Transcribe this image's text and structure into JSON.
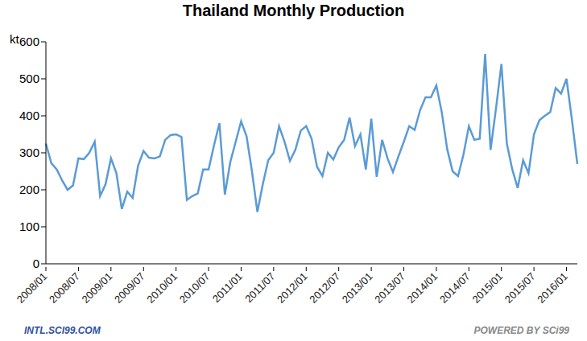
{
  "chart_data": {
    "type": "line",
    "title": "Thailand Monthly Production",
    "y_label": "kt",
    "annotations": [
      "INTL.SCI99.COM",
      "POWERED BY SCi99"
    ],
    "categories": [
      "2008/01",
      null,
      null,
      null,
      null,
      null,
      "2008/07",
      null,
      null,
      null,
      null,
      null,
      "2009/01",
      null,
      null,
      null,
      null,
      null,
      "2009/07",
      null,
      null,
      null,
      null,
      null,
      "2010/01",
      null,
      null,
      null,
      null,
      null,
      "2010/07",
      null,
      null,
      null,
      null,
      null,
      "2011/01",
      null,
      null,
      null,
      null,
      null,
      "2011/07",
      null,
      null,
      null,
      null,
      null,
      "2012/01",
      null,
      null,
      null,
      null,
      null,
      "2012/07",
      null,
      null,
      null,
      null,
      null,
      "2013/01",
      null,
      null,
      null,
      null,
      null,
      "2013/07",
      null,
      null,
      null,
      null,
      null,
      "2014/01",
      null,
      null,
      null,
      null,
      null,
      "2014/07",
      null,
      null,
      null,
      null,
      null,
      "2015/01",
      null,
      null,
      null,
      null,
      null,
      "2015/07",
      null,
      null,
      null,
      null,
      null,
      "2016/01",
      null,
      null
    ],
    "values": [
      325,
      272,
      255,
      225,
      200,
      212,
      285,
      283,
      300,
      330,
      183,
      215,
      285,
      245,
      148,
      195,
      178,
      265,
      305,
      287,
      285,
      290,
      335,
      348,
      350,
      343,
      173,
      183,
      190,
      255,
      255,
      320,
      380,
      187,
      275,
      330,
      385,
      345,
      250,
      140,
      215,
      280,
      300,
      372,
      330,
      278,
      308,
      360,
      372,
      338,
      262,
      237,
      300,
      282,
      315,
      335,
      395,
      318,
      350,
      255,
      392,
      235,
      335,
      285,
      248,
      290,
      330,
      372,
      362,
      415,
      450,
      450,
      482,
      410,
      310,
      250,
      237,
      295,
      372,
      335,
      338,
      567,
      308,
      420,
      540,
      325,
      255,
      205,
      280,
      245,
      350,
      388,
      400,
      410,
      475,
      460,
      500,
      390,
      270
    ],
    "color": "#5b9bd5",
    "ylim": [
      0,
      600
    ],
    "yticks": [
      0,
      100,
      200,
      300,
      400,
      500,
      600
    ],
    "grid": false
  }
}
